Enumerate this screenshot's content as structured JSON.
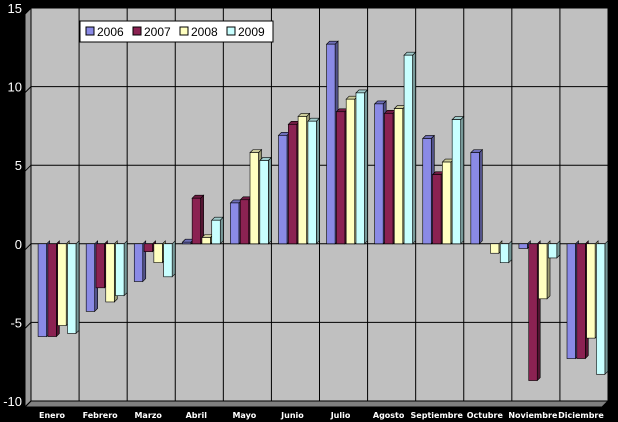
{
  "chart_data": {
    "type": "bar",
    "categories": [
      "Enero",
      "Febrero",
      "Marzo",
      "Abril",
      "Mayo",
      "Junio",
      "Julio",
      "Agosto",
      "Septiembre",
      "Octubre",
      "Noviembre",
      "Diciembre"
    ],
    "series": [
      {
        "name": "2006",
        "color": "#8a8ae6",
        "values": [
          -5.9,
          -4.3,
          -2.4,
          0.1,
          2.6,
          6.9,
          12.7,
          8.9,
          6.7,
          5.8,
          -0.3,
          -7.3
        ]
      },
      {
        "name": "2007",
        "color": "#8b2252",
        "values": [
          -5.9,
          -2.8,
          -0.5,
          2.9,
          2.8,
          7.6,
          8.4,
          8.3,
          4.4,
          0.0,
          -8.7,
          -7.3
        ]
      },
      {
        "name": "2008",
        "color": "#ffffc0",
        "values": [
          -5.2,
          -3.7,
          -1.2,
          0.4,
          5.8,
          8.1,
          9.2,
          8.6,
          5.2,
          -0.6,
          -3.5,
          -6.0
        ]
      },
      {
        "name": "2009",
        "color": "#c8ffff",
        "values": [
          -5.7,
          -3.3,
          -2.1,
          1.5,
          5.3,
          7.8,
          9.6,
          12.0,
          7.9,
          -1.2,
          -0.9,
          -8.3
        ]
      }
    ],
    "yticks": [
      "15",
      "10",
      "5",
      "0",
      "-5",
      "-10"
    ],
    "ylim": [
      -10,
      15
    ],
    "grid": true,
    "legend_position": "top-left"
  }
}
